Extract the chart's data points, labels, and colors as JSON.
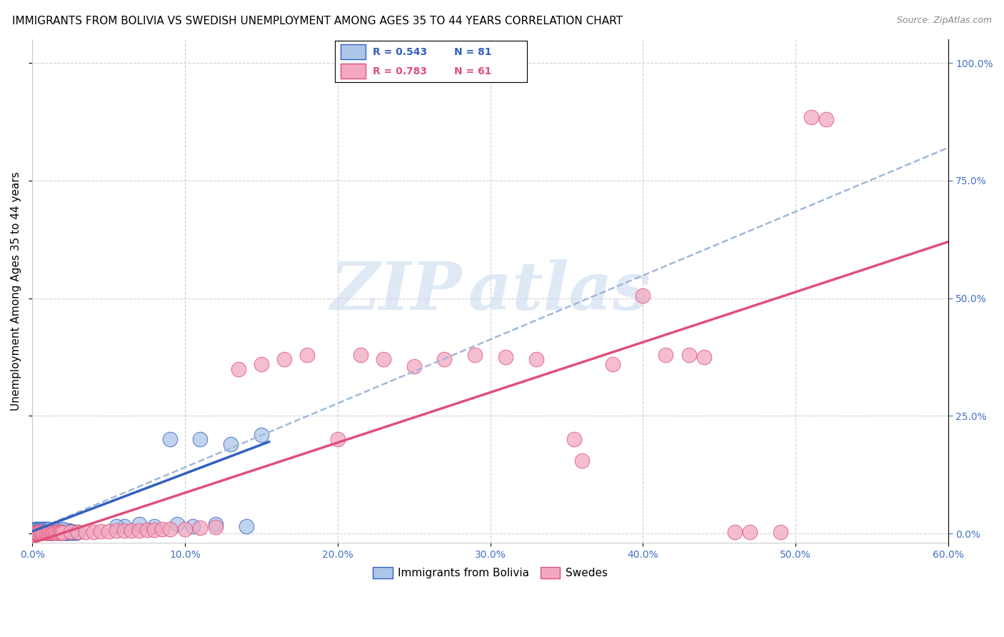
{
  "title": "IMMIGRANTS FROM BOLIVIA VS SWEDISH UNEMPLOYMENT AMONG AGES 35 TO 44 YEARS CORRELATION CHART",
  "source": "Source: ZipAtlas.com",
  "ylabel": "Unemployment Among Ages 35 to 44 years",
  "xlim": [
    0.0,
    0.6
  ],
  "ylim": [
    -0.02,
    1.05
  ],
  "xticks": [
    0.0,
    0.1,
    0.2,
    0.3,
    0.4,
    0.5,
    0.6
  ],
  "xtick_labels": [
    "0.0%",
    "10.0%",
    "20.0%",
    "30.0%",
    "40.0%",
    "50.0%",
    "60.0%"
  ],
  "yticks": [
    0.0,
    0.25,
    0.5,
    0.75,
    1.0
  ],
  "ytick_labels": [
    "0.0%",
    "25.0%",
    "50.0%",
    "75.0%",
    "100.0%"
  ],
  "legend_r1": "R = 0.543",
  "legend_n1": "N = 81",
  "legend_r2": "R = 0.783",
  "legend_n2": "N = 61",
  "series1_color": "#adc6e8",
  "series2_color": "#f2a8c0",
  "trend1_color": "#3060c0",
  "trend2_color": "#e0507a",
  "trend1_dash_color": "#a0b8d8",
  "background_color": "#ffffff",
  "grid_color": "#d0d0d0",
  "tick_color": "#4472c4",
  "title_fontsize": 11,
  "axis_label_fontsize": 11,
  "tick_fontsize": 10,
  "legend_fontsize": 11,
  "bolivia_x": [
    0.001,
    0.002,
    0.003,
    0.004,
    0.005,
    0.005,
    0.006,
    0.007,
    0.008,
    0.009,
    0.01,
    0.01,
    0.011,
    0.012,
    0.013,
    0.014,
    0.015,
    0.016,
    0.017,
    0.018,
    0.019,
    0.02,
    0.021,
    0.022,
    0.023,
    0.024,
    0.025,
    0.026,
    0.027,
    0.028,
    0.029,
    0.03,
    0.002,
    0.003,
    0.004,
    0.005,
    0.006,
    0.007,
    0.008,
    0.009,
    0.01,
    0.011,
    0.012,
    0.013,
    0.014,
    0.015,
    0.016,
    0.017,
    0.018,
    0.019,
    0.02,
    0.021,
    0.022,
    0.023,
    0.024,
    0.025,
    0.001,
    0.002,
    0.003,
    0.004,
    0.005,
    0.006,
    0.007,
    0.008,
    0.009,
    0.01,
    0.011,
    0.015,
    0.02,
    0.06,
    0.09,
    0.11,
    0.13,
    0.15,
    0.055,
    0.07,
    0.08,
    0.095,
    0.105,
    0.12,
    0.14
  ],
  "bolivia_y": [
    0.002,
    0.002,
    0.002,
    0.002,
    0.003,
    0.002,
    0.002,
    0.002,
    0.003,
    0.002,
    0.003,
    0.002,
    0.002,
    0.002,
    0.002,
    0.002,
    0.003,
    0.002,
    0.002,
    0.003,
    0.002,
    0.003,
    0.002,
    0.002,
    0.002,
    0.002,
    0.003,
    0.002,
    0.002,
    0.003,
    0.002,
    0.003,
    0.005,
    0.005,
    0.005,
    0.006,
    0.005,
    0.005,
    0.006,
    0.005,
    0.006,
    0.005,
    0.006,
    0.005,
    0.006,
    0.005,
    0.006,
    0.005,
    0.006,
    0.005,
    0.006,
    0.005,
    0.006,
    0.005,
    0.006,
    0.005,
    0.01,
    0.01,
    0.01,
    0.01,
    0.01,
    0.01,
    0.01,
    0.01,
    0.01,
    0.01,
    0.01,
    0.01,
    0.01,
    0.015,
    0.2,
    0.2,
    0.19,
    0.21,
    0.015,
    0.02,
    0.015,
    0.02,
    0.015,
    0.02,
    0.015
  ],
  "swedes_x": [
    0.001,
    0.002,
    0.003,
    0.004,
    0.005,
    0.006,
    0.007,
    0.008,
    0.009,
    0.01,
    0.011,
    0.012,
    0.013,
    0.014,
    0.015,
    0.016,
    0.017,
    0.018,
    0.019,
    0.02,
    0.025,
    0.03,
    0.035,
    0.04,
    0.045,
    0.05,
    0.055,
    0.06,
    0.065,
    0.07,
    0.075,
    0.08,
    0.085,
    0.09,
    0.1,
    0.11,
    0.12,
    0.135,
    0.15,
    0.165,
    0.18,
    0.2,
    0.215,
    0.23,
    0.25,
    0.27,
    0.29,
    0.31,
    0.33,
    0.355,
    0.38,
    0.4,
    0.415,
    0.43,
    0.44,
    0.36,
    0.46,
    0.47,
    0.49,
    0.51,
    0.52
  ],
  "swedes_y": [
    0.002,
    0.002,
    0.002,
    0.002,
    0.003,
    0.002,
    0.002,
    0.003,
    0.002,
    0.002,
    0.003,
    0.002,
    0.003,
    0.002,
    0.003,
    0.002,
    0.003,
    0.002,
    0.003,
    0.002,
    0.003,
    0.004,
    0.004,
    0.004,
    0.005,
    0.005,
    0.006,
    0.006,
    0.007,
    0.007,
    0.008,
    0.008,
    0.009,
    0.009,
    0.01,
    0.012,
    0.014,
    0.35,
    0.36,
    0.37,
    0.38,
    0.2,
    0.38,
    0.37,
    0.355,
    0.37,
    0.38,
    0.375,
    0.37,
    0.2,
    0.36,
    0.505,
    0.38,
    0.38,
    0.375,
    0.155,
    0.003,
    0.004,
    0.003,
    0.885,
    0.88
  ],
  "bolivia_trend_x": [
    0.0,
    0.155
  ],
  "bolivia_trend_y": [
    0.005,
    0.195
  ],
  "bolivia_dash_trend_x": [
    0.0,
    0.6
  ],
  "bolivia_dash_trend_y": [
    0.005,
    0.82
  ],
  "swedes_trend_x": [
    0.0,
    0.6
  ],
  "swedes_trend_y": [
    -0.02,
    0.62
  ]
}
